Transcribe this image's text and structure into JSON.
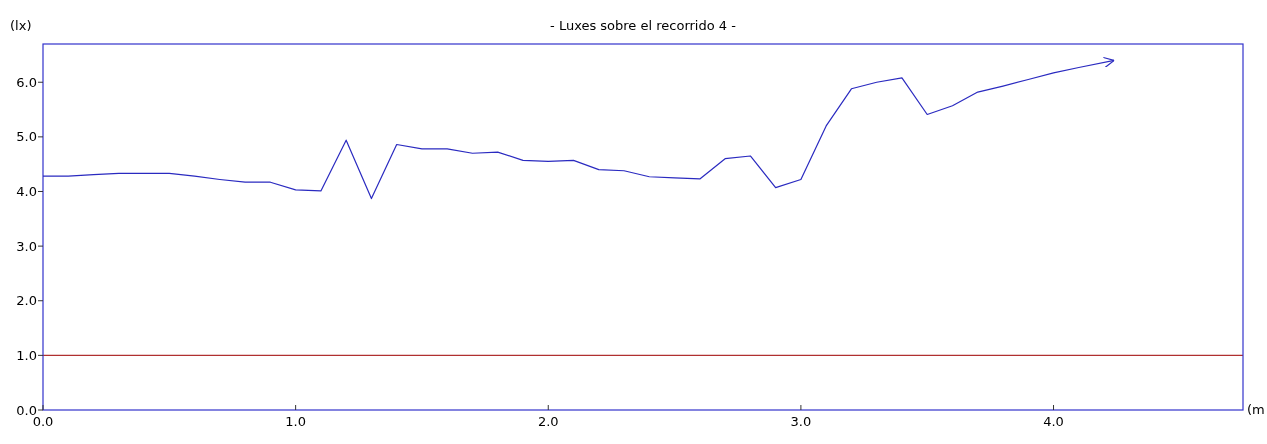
{
  "chart_data": {
    "type": "line",
    "title": "- Luxes sobre el recorrido 4 -",
    "xlabel": "(m",
    "ylabel": "(lx)",
    "x": [
      0,
      0.1,
      0.2,
      0.3,
      0.4,
      0.5,
      0.6,
      0.7,
      0.8,
      0.9,
      1.0,
      1.1,
      1.2,
      1.3,
      1.4,
      1.5,
      1.6,
      1.7,
      1.8,
      1.9,
      2.0,
      2.1,
      2.2,
      2.3,
      2.4,
      2.5,
      2.6,
      2.7,
      2.8,
      2.9,
      3.0,
      3.1,
      3.2,
      3.3,
      3.4,
      3.5,
      3.6,
      3.7,
      3.8,
      3.9,
      4.0,
      4.1,
      4.24
    ],
    "series": [
      {
        "color": "#2a2ac0",
        "values": [
          4.28,
          4.28,
          4.31,
          4.33,
          4.33,
          4.33,
          4.28,
          4.22,
          4.17,
          4.17,
          4.03,
          4.01,
          4.94,
          3.87,
          4.86,
          4.78,
          4.78,
          4.7,
          4.72,
          4.57,
          4.55,
          4.57,
          4.4,
          4.38,
          4.27,
          4.25,
          4.23,
          4.6,
          4.65,
          4.07,
          4.22,
          5.2,
          5.88,
          6.0,
          6.08,
          5.41,
          5.57,
          5.82,
          5.93,
          6.05,
          6.17,
          6.27,
          6.4
        ]
      }
    ],
    "xlim": [
      0,
      4.75
    ],
    "ylim": [
      0,
      6.7
    ],
    "xticks": [
      {
        "value": 0,
        "label": "0.0"
      },
      {
        "value": 1,
        "label": "1.0"
      },
      {
        "value": 2,
        "label": "2.0"
      },
      {
        "value": 3,
        "label": "3.0"
      },
      {
        "value": 4,
        "label": "4.0"
      }
    ],
    "yticks": [
      {
        "value": 0,
        "label": "0.0"
      },
      {
        "value": 1,
        "label": "1.0"
      },
      {
        "value": 2,
        "label": "2.0"
      },
      {
        "value": 3,
        "label": "3.0"
      },
      {
        "value": 4,
        "label": "4.0"
      },
      {
        "value": 5,
        "label": "5.0"
      },
      {
        "value": 6,
        "label": "6.0"
      }
    ],
    "ref_lines": [
      {
        "axis": "y",
        "value": 1,
        "color": "#b03030"
      }
    ],
    "grid": false,
    "marker": "none",
    "line_style": "solid"
  }
}
